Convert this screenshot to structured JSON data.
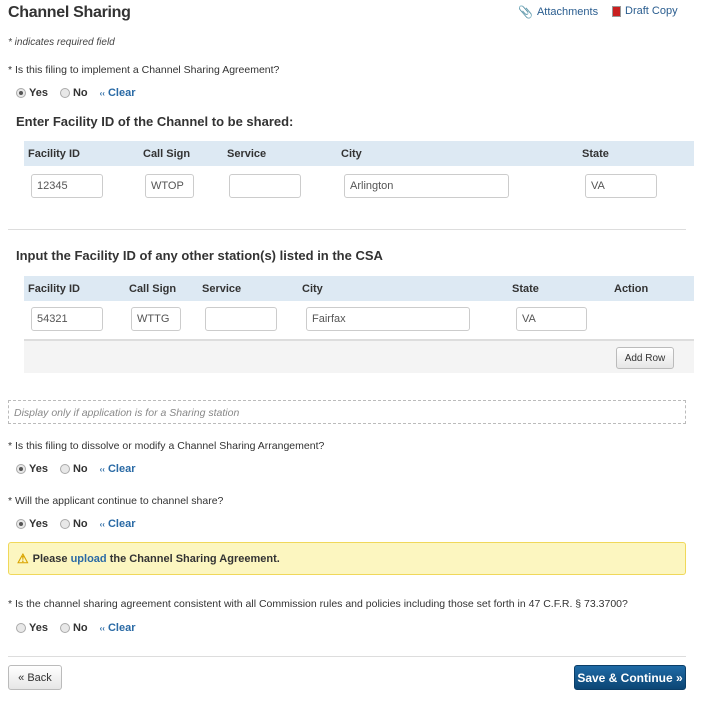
{
  "header": {
    "title": "Channel Sharing",
    "attachments": "Attachments",
    "draft_copy": "Draft Copy"
  },
  "required_note": "* indicates required field",
  "q1": {
    "label": "* Is this filing to implement a Channel Sharing Agreement?",
    "yes": "Yes",
    "no": "No",
    "clear": "Clear",
    "selected": "Yes"
  },
  "section1": {
    "heading": "Enter Facility ID of the Channel to be shared:",
    "columns": [
      "Facility ID",
      "Call Sign",
      "Service",
      "City",
      "State"
    ],
    "row": {
      "facility_id": "12345",
      "call_sign": "WTOP",
      "service": "",
      "city": "Arlington",
      "state": "VA"
    }
  },
  "section2": {
    "heading": "Input the Facility ID of any other station(s) listed in the CSA",
    "columns": [
      "Facility ID",
      "Call Sign",
      "Service",
      "City",
      "State",
      "Action"
    ],
    "row": {
      "facility_id": "54321",
      "call_sign": "WTTG",
      "service": "",
      "city": "Fairfax",
      "state": "VA"
    },
    "add_row": "Add Row"
  },
  "sharing_note": "Display only if application is for a Sharing station",
  "q2": {
    "label": "* Is this filing to dissolve or modify a Channel Sharing Arrangement?",
    "yes": "Yes",
    "no": "No",
    "clear": "Clear",
    "selected": "Yes"
  },
  "q3": {
    "label": "* Will the applicant continue to channel share?",
    "yes": "Yes",
    "no": "No",
    "clear": "Clear",
    "selected": "Yes"
  },
  "warning": {
    "before": "Please ",
    "link": "upload",
    "after": " the Channel Sharing Agreement.",
    "icon": "warning-icon"
  },
  "q4": {
    "label": "* Is the channel sharing agreement consistent with all Commission rules and policies including those set forth in 47 C.F.R. § 73.3700?",
    "yes": "Yes",
    "no": "No",
    "clear": "Clear",
    "selected": null
  },
  "footer": {
    "back": "« Back",
    "save": "Save & Continue »"
  },
  "colors": {
    "accent": "#0c4675",
    "link": "#2a6aa5",
    "table_header": "#dde9f3",
    "warning_bg": "#fcf6c0"
  }
}
